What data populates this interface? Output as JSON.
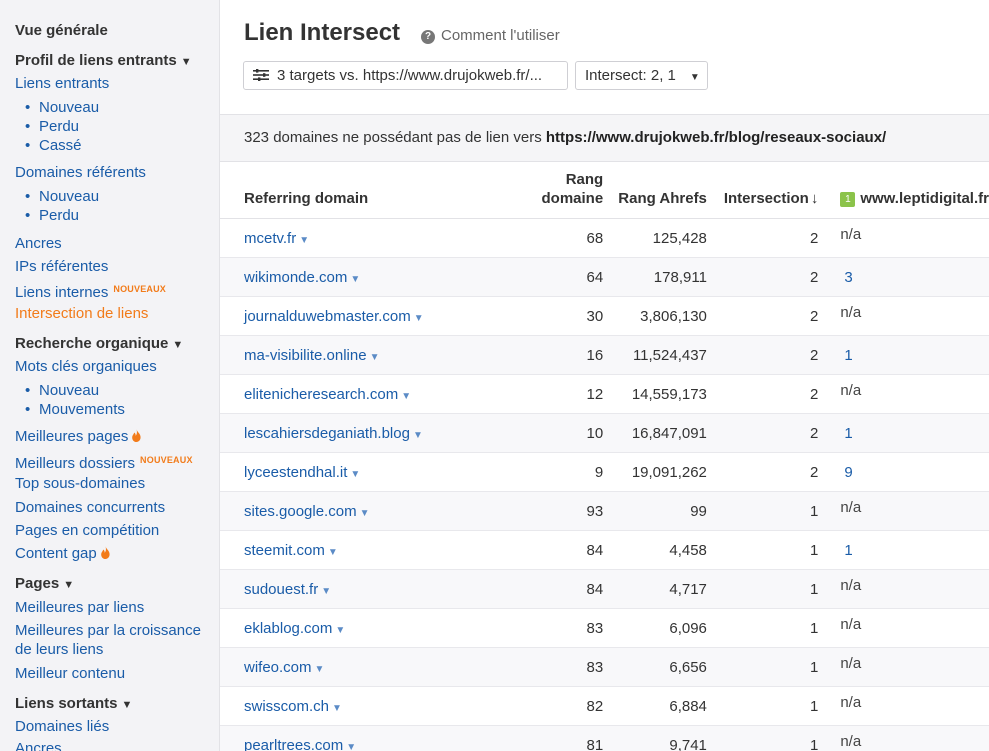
{
  "sidebar": {
    "overview": "Vue générale",
    "backlinks_head": "Profil de liens entrants",
    "backlinks": "Liens entrants",
    "backlinks_new": "Nouveau",
    "backlinks_lost": "Perdu",
    "backlinks_broken": "Cassé",
    "ref_domains": "Domaines référents",
    "ref_new": "Nouveau",
    "ref_lost": "Perdu",
    "anchors": "Ancres",
    "ref_ips": "IPs référentes",
    "internal": "Liens internes",
    "internal_badge": "NOUVEAUX",
    "link_intersect": "Intersection de liens",
    "organic_head": "Recherche organique",
    "organic_kw": "Mots clés organiques",
    "kw_new": "Nouveau",
    "kw_moves": "Mouvements",
    "top_pages": "Meilleures pages",
    "top_folders": "Meilleurs dossiers",
    "top_folders_badge": "NOUVEAUX",
    "top_subdomains": "Top sous-domaines",
    "competing_domains": "Domaines concurrents",
    "competing_pages": "Pages en compétition",
    "content_gap": "Content gap",
    "pages_head": "Pages",
    "best_by_links": "Meilleures par liens",
    "best_by_growth": "Meilleures par la croissance",
    "best_by_growth_2": "de leurs liens",
    "best_content": "Meilleur contenu",
    "outgoing_head": "Liens sortants",
    "linked_domains": "Domaines liés",
    "outgoing_anchors": "Ancres"
  },
  "header": {
    "title": "Lien Intersect",
    "help": "Comment l'utiliser",
    "targets_button": "3 targets vs. https://www.drujokweb.fr/...",
    "intersect_dropdown": "Intersect: 2, 1"
  },
  "banner": {
    "text": "323 domaines ne possédant pas de lien vers ",
    "url": "https://www.drujokweb.fr/blog/reseaux-sociaux/"
  },
  "table": {
    "col_domain": "Referring domain",
    "col_dr_1": "Rang",
    "col_dr_2": "domaine",
    "col_ar": "Rang Ahrefs",
    "col_intersect": "Intersection",
    "col_target_badge": "1",
    "col_target": "www.leptidigital.fr",
    "rows": [
      {
        "domain": "mcetv.fr",
        "dr": "68",
        "ar": "125,428",
        "inter": "2",
        "t1": "n/a"
      },
      {
        "domain": "wikimonde.com",
        "dr": "64",
        "ar": "178,911",
        "inter": "2",
        "t1": "3"
      },
      {
        "domain": "journalduwebmaster.com",
        "dr": "30",
        "ar": "3,806,130",
        "inter": "2",
        "t1": "n/a"
      },
      {
        "domain": "ma-visibilite.online",
        "dr": "16",
        "ar": "11,524,437",
        "inter": "2",
        "t1": "1"
      },
      {
        "domain": "elitenicheresearch.com",
        "dr": "12",
        "ar": "14,559,173",
        "inter": "2",
        "t1": "n/a"
      },
      {
        "domain": "lescahiersdeganiath.blog",
        "dr": "10",
        "ar": "16,847,091",
        "inter": "2",
        "t1": "1"
      },
      {
        "domain": "lyceestendhal.it",
        "dr": "9",
        "ar": "19,091,262",
        "inter": "2",
        "t1": "9"
      },
      {
        "domain": "sites.google.com",
        "dr": "93",
        "ar": "99",
        "inter": "1",
        "t1": "n/a"
      },
      {
        "domain": "steemit.com",
        "dr": "84",
        "ar": "4,458",
        "inter": "1",
        "t1": "1"
      },
      {
        "domain": "sudouest.fr",
        "dr": "84",
        "ar": "4,717",
        "inter": "1",
        "t1": "n/a"
      },
      {
        "domain": "eklablog.com",
        "dr": "83",
        "ar": "6,096",
        "inter": "1",
        "t1": "n/a"
      },
      {
        "domain": "wifeo.com",
        "dr": "83",
        "ar": "6,656",
        "inter": "1",
        "t1": "n/a"
      },
      {
        "domain": "swisscom.ch",
        "dr": "82",
        "ar": "6,884",
        "inter": "1",
        "t1": "n/a"
      },
      {
        "domain": "pearltrees.com",
        "dr": "81",
        "ar": "9,741",
        "inter": "1",
        "t1": "n/a"
      }
    ]
  }
}
